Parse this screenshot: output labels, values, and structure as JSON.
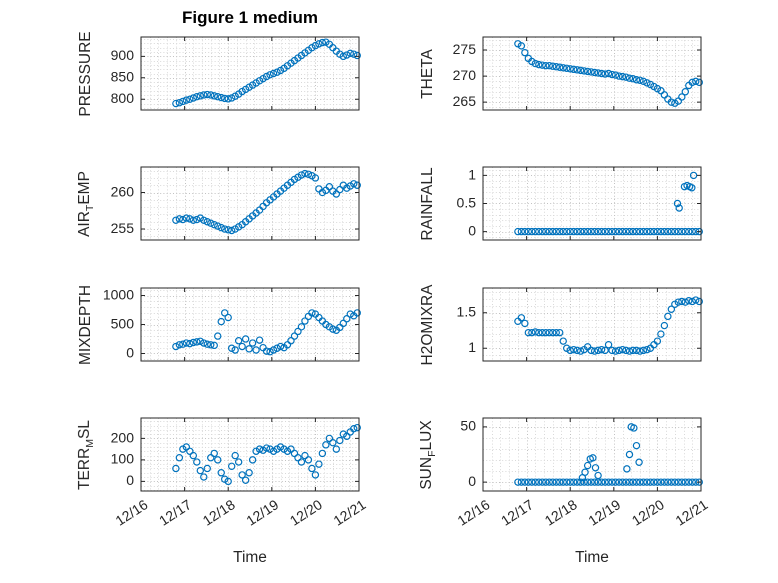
{
  "figure": {
    "title": "Figure 1 medium",
    "xlabel": "Time",
    "accent_color": "#0072BD",
    "axis_color": "#262626",
    "grid_color": "#c2c2c2",
    "minor_grid_color": "#d9d9d9",
    "background": "#ffffff",
    "marker": "open-circle"
  },
  "chart_data": {
    "type": "scatter",
    "layout": "4x2 subplot grid, box on, dotted major and minor grid, only bottom row has x tick labels",
    "x_unit": "days since 12/16",
    "xlim": [
      0,
      5
    ],
    "x_ticks": [
      0,
      1,
      2,
      3,
      4,
      5
    ],
    "x_tick_labels": [
      "12/16",
      "12/17",
      "12/18",
      "12/19",
      "12/20",
      "12/21"
    ],
    "shared_x": [
      0.8,
      0.88,
      0.96,
      1.04,
      1.12,
      1.2,
      1.28,
      1.36,
      1.44,
      1.52,
      1.6,
      1.68,
      1.76,
      1.84,
      1.92,
      2,
      2.08,
      2.16,
      2.24,
      2.32,
      2.4,
      2.48,
      2.56,
      2.64,
      2.72,
      2.8,
      2.88,
      2.96,
      3.04,
      3.12,
      3.2,
      3.28,
      3.36,
      3.44,
      3.52,
      3.6,
      3.68,
      3.76,
      3.84,
      3.92,
      4,
      4.08,
      4.16,
      4.24,
      4.32,
      4.4,
      4.48,
      4.56,
      4.64,
      4.72,
      4.8,
      4.88,
      4.96
    ],
    "subplots": [
      {
        "name": "PRESSURE",
        "ylabel_parts": [
          {
            "text": "PRESSURE"
          }
        ],
        "yticks": [
          800,
          850,
          900
        ],
        "ylim": [
          775,
          945
        ],
        "y": [
          790,
          792,
          795,
          798,
          800,
          803,
          806,
          808,
          810,
          811,
          810,
          808,
          806,
          804,
          802,
          801,
          803,
          807,
          812,
          818,
          823,
          828,
          833,
          838,
          843,
          848,
          853,
          857,
          860,
          863,
          867,
          872,
          878,
          884,
          890,
          896,
          902,
          908,
          914,
          920,
          925,
          929,
          932,
          933,
          928,
          920,
          912,
          905,
          900,
          903,
          907,
          905,
          902
        ]
      },
      {
        "name": "AIR_TEMP",
        "ylabel_parts": [
          {
            "text": "AIR"
          },
          {
            "text": "T",
            "sub": true
          },
          {
            "text": "EMP"
          }
        ],
        "yticks": [
          255,
          260
        ],
        "ylim": [
          253.5,
          263.5
        ],
        "y": [
          256.2,
          256.4,
          256.3,
          256.5,
          256.4,
          256.2,
          256.3,
          256.5,
          256.2,
          256,
          255.8,
          255.6,
          255.4,
          255.2,
          255,
          254.9,
          254.8,
          255,
          255.3,
          255.6,
          256,
          256.4,
          256.8,
          257.2,
          257.6,
          258.1,
          258.6,
          259,
          259.4,
          259.8,
          260.2,
          260.6,
          261,
          261.4,
          261.8,
          262.1,
          262.4,
          262.6,
          262.5,
          262.3,
          262,
          260.5,
          260,
          260.3,
          260.8,
          260.2,
          259.8,
          260.4,
          261,
          260.6,
          260.9,
          261.2,
          261
        ]
      },
      {
        "name": "MIXDEPTH",
        "ylabel_parts": [
          {
            "text": "MIXDEPTH"
          }
        ],
        "yticks": [
          0,
          500,
          1000
        ],
        "ylim": [
          -130,
          1130
        ],
        "y": [
          120,
          150,
          160,
          180,
          170,
          190,
          200,
          210,
          180,
          160,
          150,
          140,
          300,
          550,
          700,
          620,
          90,
          60,
          220,
          120,
          250,
          80,
          180,
          60,
          230,
          100,
          40,
          30,
          60,
          90,
          120,
          100,
          150,
          220,
          300,
          380,
          460,
          560,
          640,
          700,
          680,
          620,
          560,
          500,
          460,
          420,
          400,
          450,
          520,
          600,
          680,
          650,
          700
        ]
      },
      {
        "name": "TERR_MSL",
        "ylabel_parts": [
          {
            "text": "TERR"
          },
          {
            "text": "M",
            "sub": true
          },
          {
            "text": "SL"
          }
        ],
        "yticks": [
          0,
          100,
          200
        ],
        "ylim": [
          -45,
          295
        ],
        "y": [
          60,
          110,
          150,
          160,
          140,
          120,
          90,
          50,
          20,
          60,
          110,
          130,
          100,
          40,
          10,
          0,
          70,
          120,
          90,
          30,
          5,
          40,
          100,
          140,
          150,
          145,
          155,
          150,
          140,
          150,
          160,
          150,
          140,
          150,
          130,
          110,
          90,
          120,
          100,
          60,
          30,
          80,
          130,
          170,
          200,
          180,
          150,
          190,
          220,
          210,
          230,
          245,
          250
        ]
      },
      {
        "name": "THETA",
        "ylabel_parts": [
          {
            "text": "THETA"
          }
        ],
        "yticks": [
          265,
          270,
          275
        ],
        "ylim": [
          263.5,
          277.5
        ],
        "y": [
          276.2,
          275.8,
          274.5,
          273.4,
          272.8,
          272.4,
          272.2,
          272.1,
          272,
          272,
          271.9,
          271.8,
          271.7,
          271.6,
          271.5,
          271.4,
          271.3,
          271.2,
          271.1,
          271,
          270.9,
          270.8,
          270.7,
          270.6,
          270.5,
          270.4,
          270.5,
          270.3,
          270.2,
          270,
          269.9,
          269.8,
          269.6,
          269.5,
          269.3,
          269.2,
          269,
          268.7,
          268.4,
          268,
          267.6,
          267.2,
          266.4,
          265.6,
          265,
          264.8,
          265.2,
          266,
          267,
          268.2,
          268.8,
          269,
          268.8
        ]
      },
      {
        "name": "RAINFALL",
        "ylabel_parts": [
          {
            "text": "RAINFALL"
          }
        ],
        "yticks": [
          0,
          0.5,
          1
        ],
        "ylim": [
          -0.15,
          1.15
        ],
        "y": [
          0,
          0,
          0,
          0,
          0,
          0,
          0,
          0,
          0,
          0,
          0,
          0,
          0,
          0,
          0,
          0,
          0,
          0,
          0,
          0,
          0,
          0,
          0,
          0,
          0,
          0,
          0,
          0,
          0,
          0,
          0,
          0,
          0,
          0,
          0,
          0,
          0,
          0,
          0,
          0,
          0,
          0,
          0,
          0,
          0,
          0,
          0,
          0,
          0,
          0,
          0,
          0,
          0
        ],
        "x_extra": [
          4.46,
          4.5,
          4.62,
          4.68,
          4.74,
          4.79,
          4.83
        ],
        "y_extra": [
          0.5,
          0.42,
          0.8,
          0.82,
          0.8,
          0.78,
          1.0
        ]
      },
      {
        "name": "H2OMIXRA",
        "ylabel_parts": [
          {
            "text": "H2OMIXRA"
          }
        ],
        "yticks": [
          1,
          1.5
        ],
        "ylim": [
          0.82,
          1.85
        ],
        "y": [
          1.38,
          1.43,
          1.35,
          1.22,
          1.22,
          1.23,
          1.22,
          1.22,
          1.22,
          1.22,
          1.22,
          1.22,
          1.22,
          1.1,
          1,
          0.97,
          0.98,
          0.97,
          0.96,
          0.98,
          1.02,
          0.97,
          0.96,
          0.97,
          0.98,
          0.97,
          1.05,
          0.97,
          0.96,
          0.97,
          0.98,
          0.97,
          0.96,
          0.97,
          0.97,
          0.96,
          0.97,
          0.98,
          1,
          1.05,
          1.1,
          1.2,
          1.32,
          1.45,
          1.55,
          1.62,
          1.65,
          1.66,
          1.65,
          1.67,
          1.66,
          1.68,
          1.66
        ]
      },
      {
        "name": "SUN_FLUX",
        "ylabel_parts": [
          {
            "text": "SUN"
          },
          {
            "text": "F",
            "sub": true
          },
          {
            "text": "LUX"
          }
        ],
        "yticks": [
          0,
          50
        ],
        "ylim": [
          -8,
          58
        ],
        "y": [
          0,
          0,
          0,
          0,
          0,
          0,
          0,
          0,
          0,
          0,
          0,
          0,
          0,
          0,
          0,
          0,
          0,
          0,
          0,
          0,
          0,
          0,
          0,
          0,
          0,
          0,
          0,
          0,
          0,
          0,
          0,
          0,
          0,
          0,
          0,
          0,
          0,
          0,
          0,
          0,
          0,
          0,
          0,
          0,
          0,
          0,
          0,
          0,
          0,
          0,
          0,
          0,
          0
        ],
        "x_extra": [
          2.28,
          2.34,
          2.4,
          2.46,
          2.52,
          2.58,
          2.64,
          3.3,
          3.36,
          3.4,
          3.46,
          3.52,
          3.58
        ],
        "y_extra": [
          4,
          9,
          15,
          21,
          22,
          13,
          6,
          12,
          25,
          50,
          49,
          33,
          18
        ]
      }
    ]
  }
}
